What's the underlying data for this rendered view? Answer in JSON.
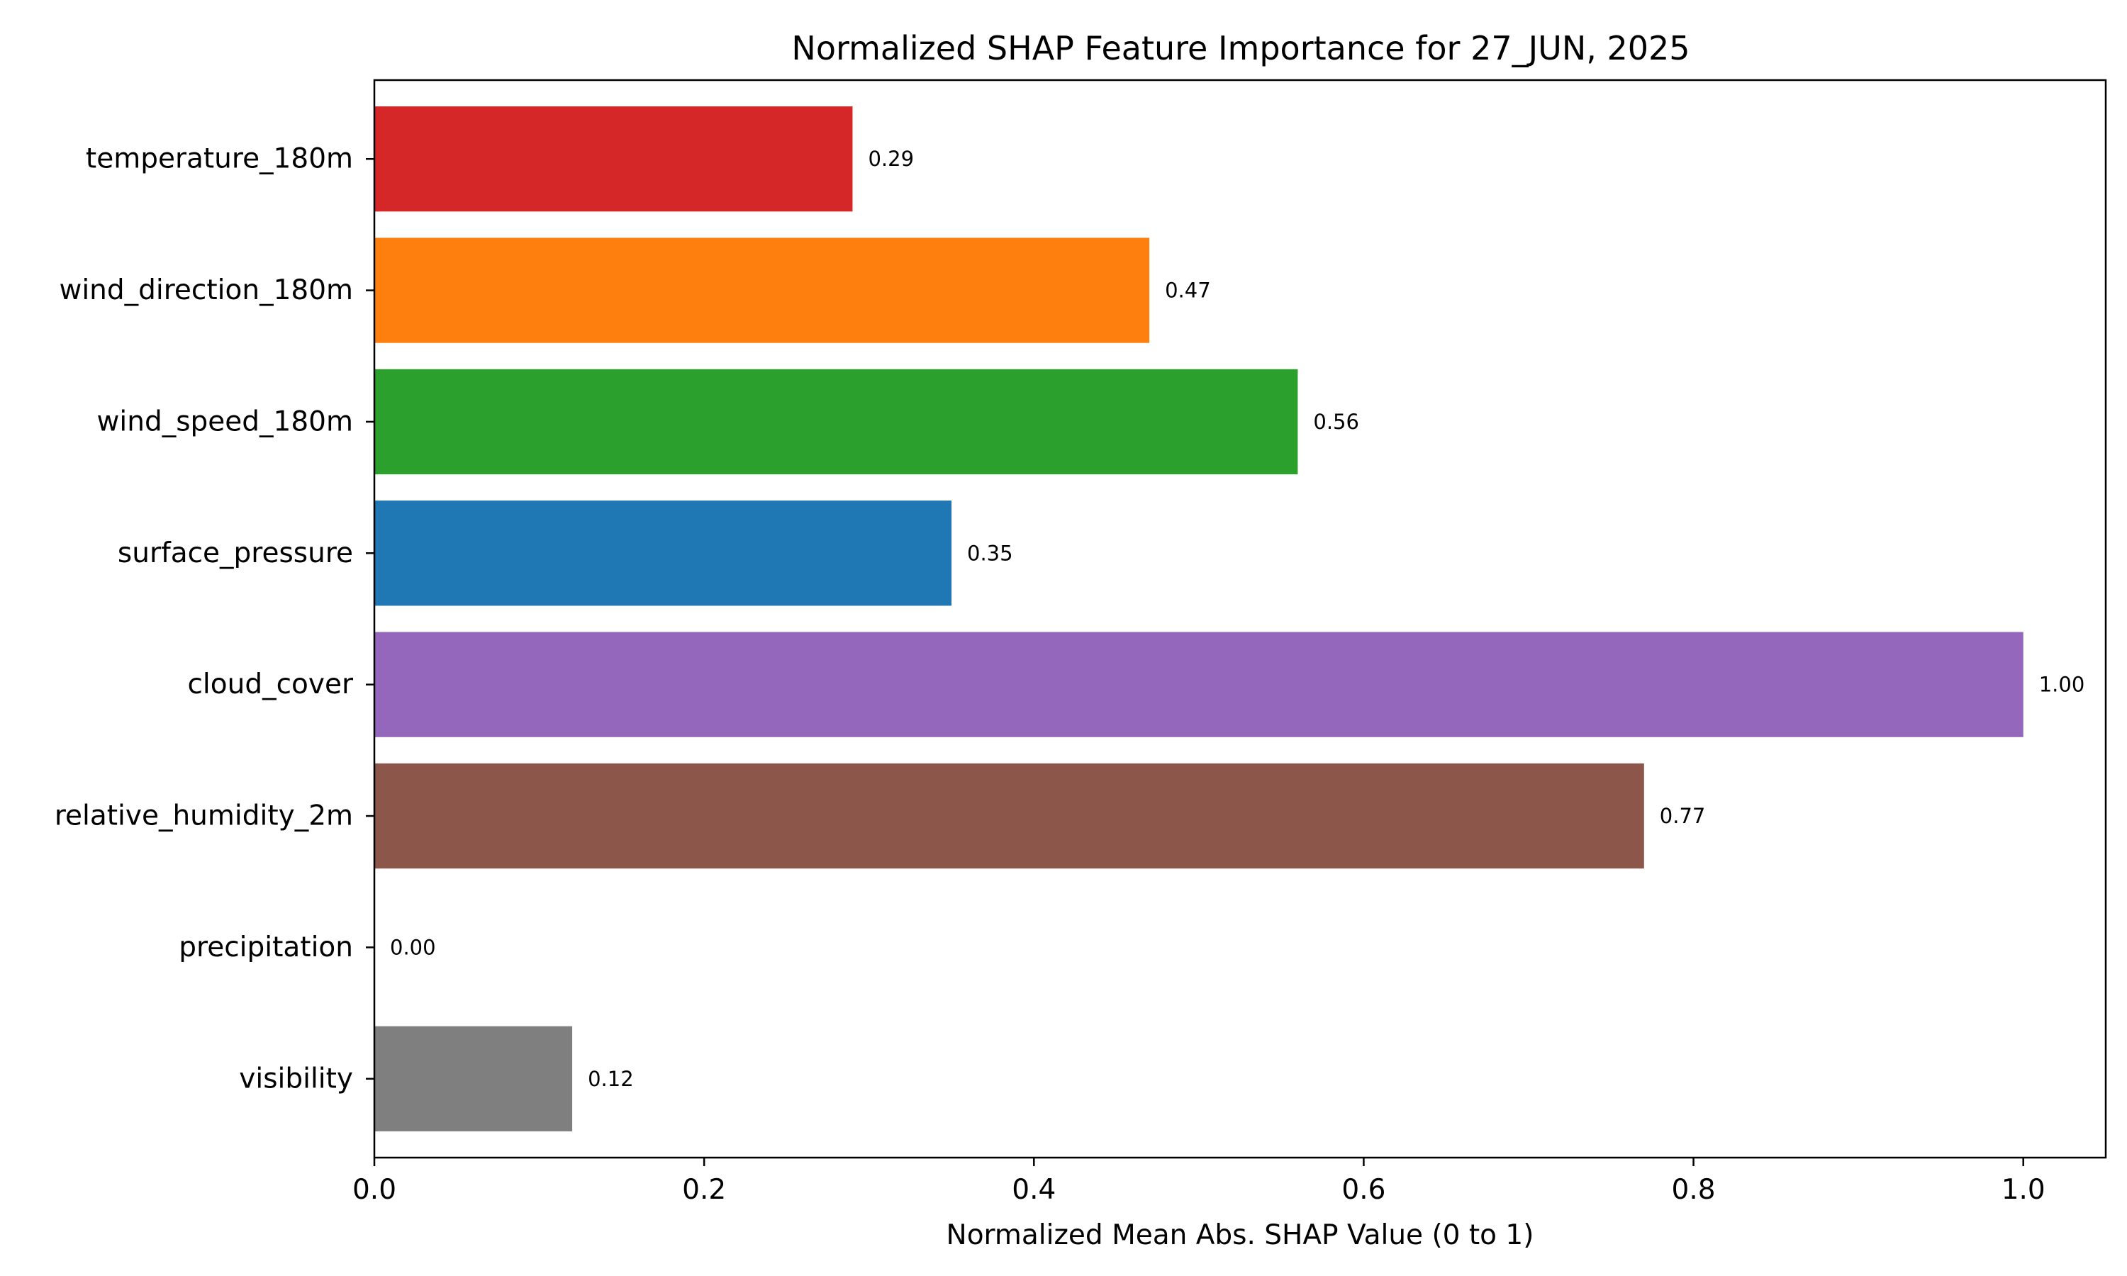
{
  "chart_data": {
    "type": "bar",
    "orientation": "horizontal",
    "title": "Normalized SHAP Feature Importance for 27_JUN, 2025",
    "xlabel": "Normalized Mean Abs. SHAP Value (0 to 1)",
    "ylabel": "",
    "categories": [
      "temperature_180m",
      "wind_direction_180m",
      "wind_speed_180m",
      "surface_pressure",
      "cloud_cover",
      "relative_humidity_2m",
      "precipitation",
      "visibility"
    ],
    "values": [
      0.29,
      0.47,
      0.56,
      0.35,
      1.0,
      0.77,
      0.0,
      0.12
    ],
    "data_labels": [
      "0.29",
      "0.47",
      "0.56",
      "0.35",
      "1.00",
      "0.77",
      "0.00",
      "0.12"
    ],
    "colors": [
      "#d62728",
      "#ff7f0e",
      "#2ca02c",
      "#1f77b4",
      "#9467bd",
      "#8c564b",
      "#e377c2",
      "#7f7f7f"
    ],
    "xlim": [
      0,
      1.05
    ],
    "xticks": [
      0.0,
      0.2,
      0.4,
      0.6,
      0.8,
      1.0
    ],
    "xtick_labels": [
      "0.0",
      "0.2",
      "0.4",
      "0.6",
      "0.8",
      "1.0"
    ],
    "grid": false,
    "legend": "none"
  }
}
